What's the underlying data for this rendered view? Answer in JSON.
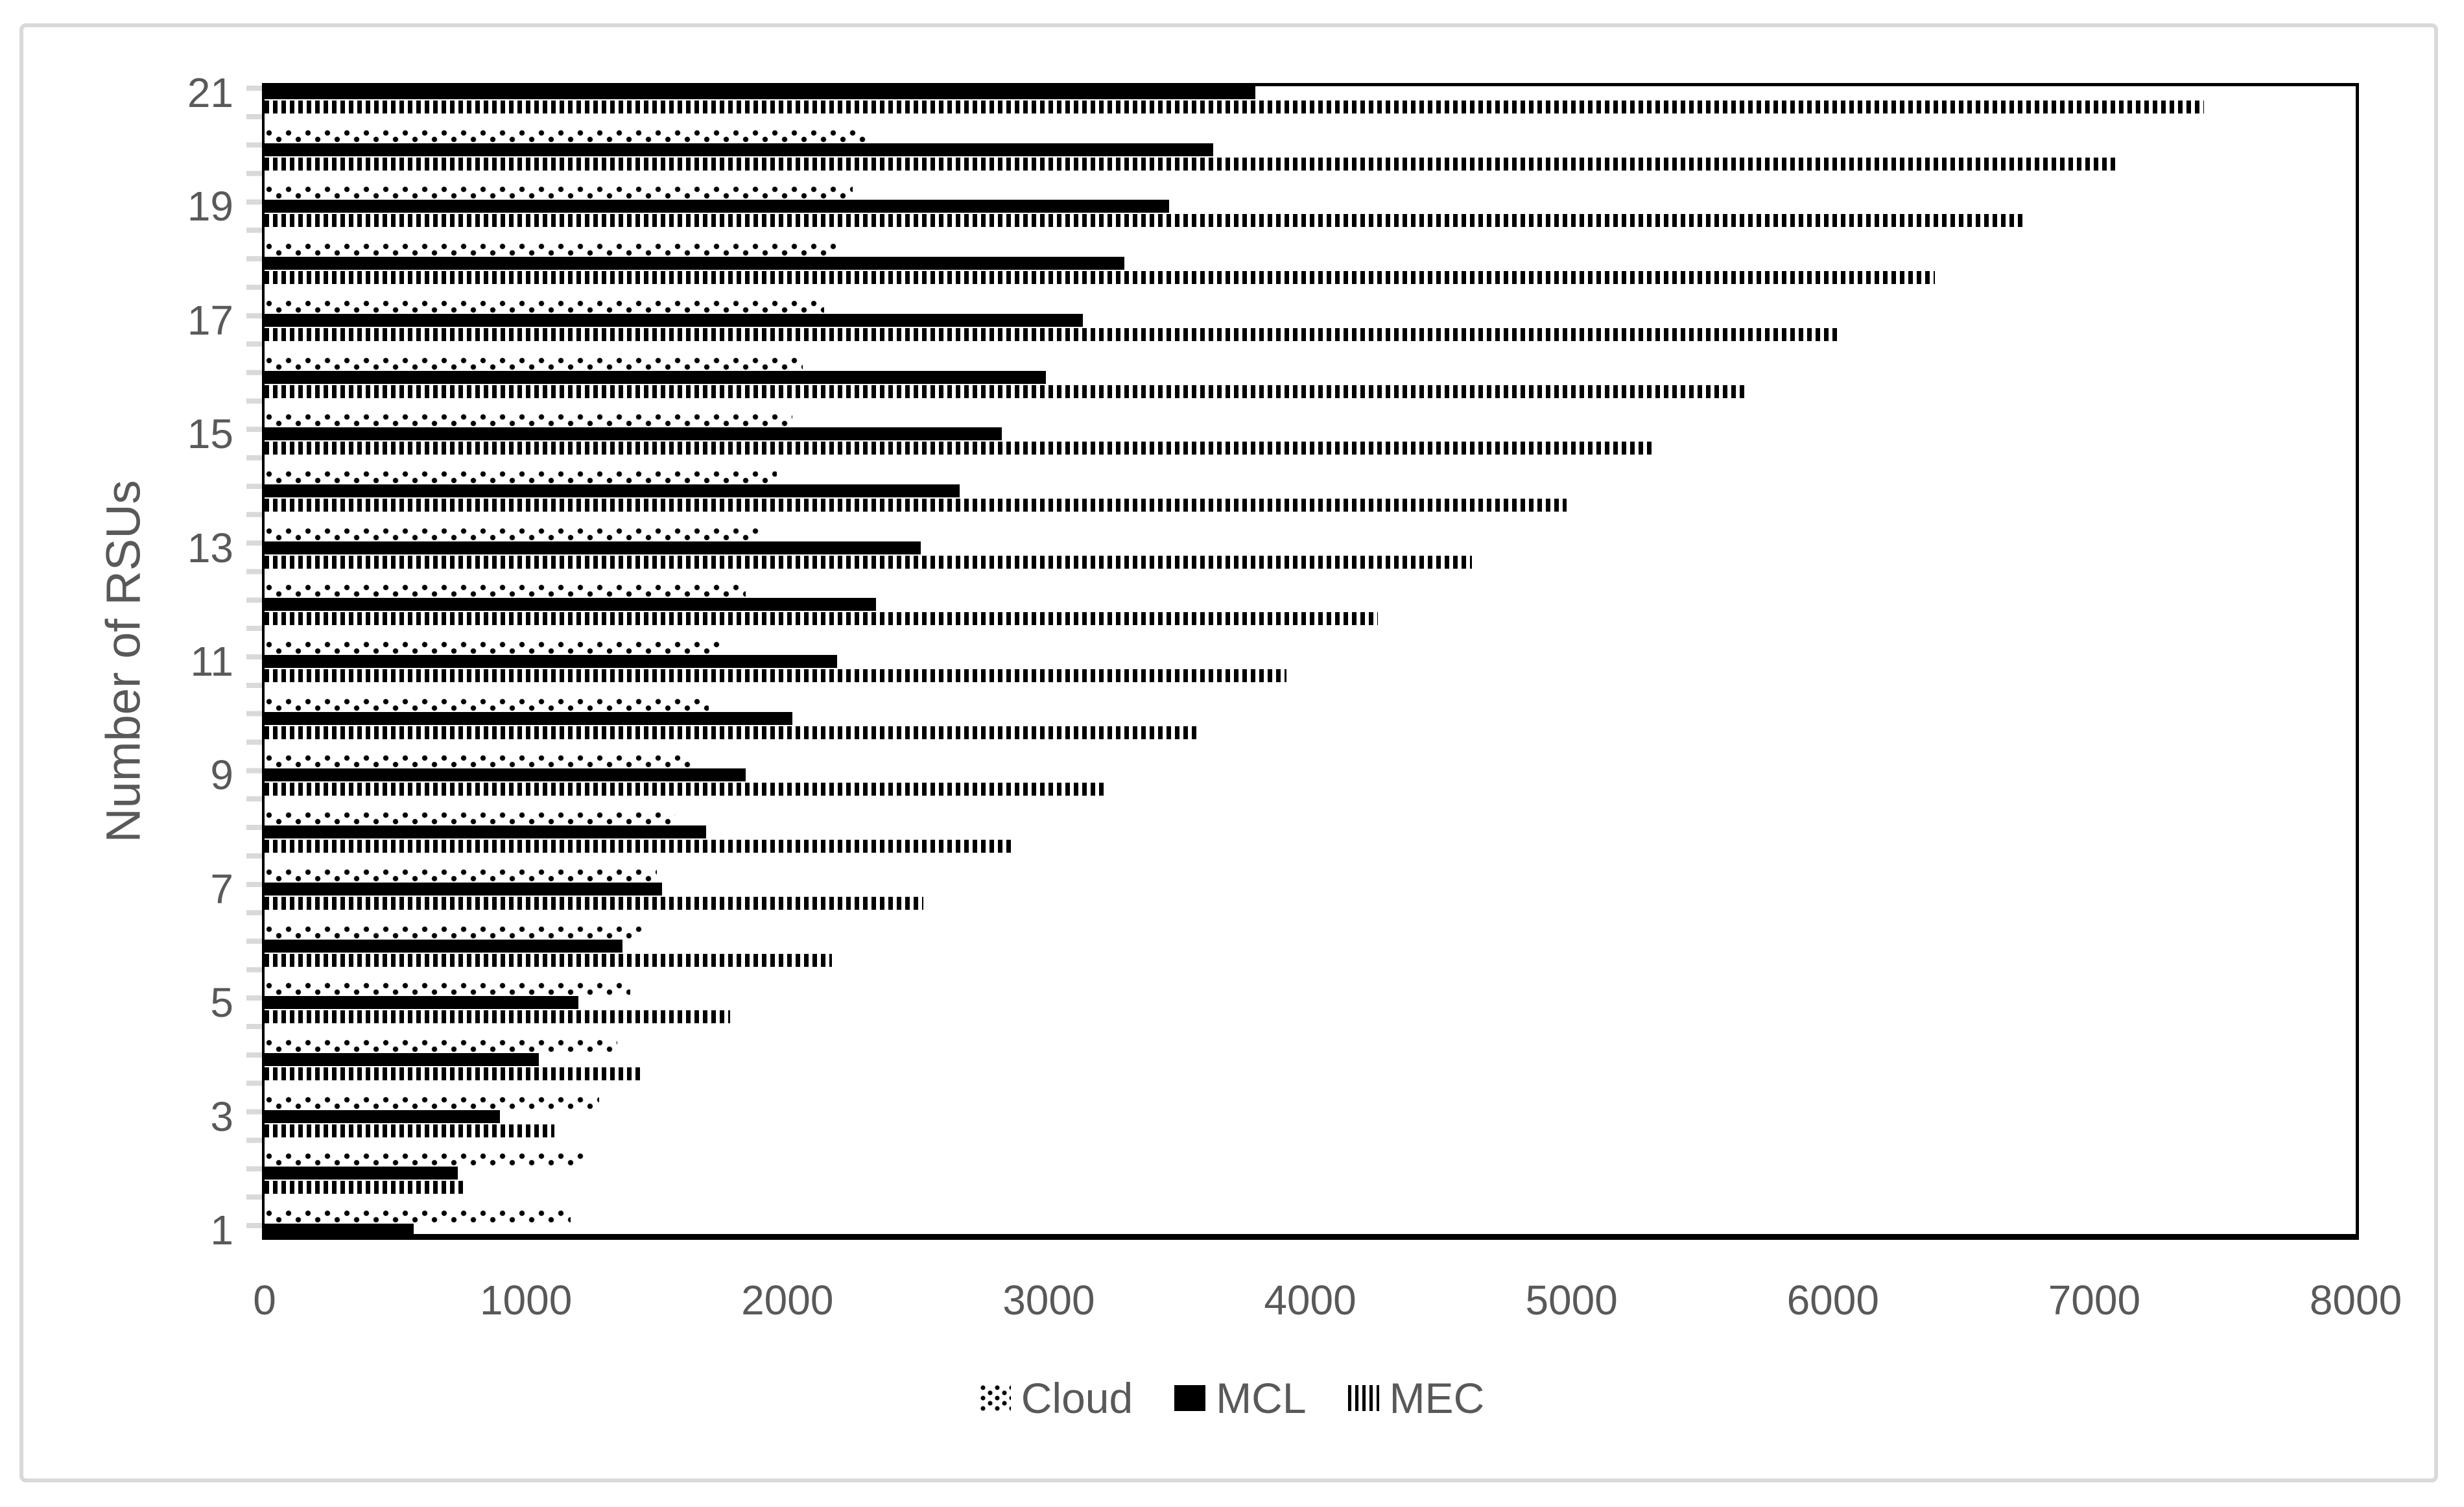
{
  "chart_data": {
    "type": "bar",
    "orientation": "horizontal",
    "title": "",
    "xlabel": "",
    "ylabel": "Number of RSUs",
    "xlim": [
      0,
      8000
    ],
    "x_ticks": [
      "0",
      "1000",
      "2000",
      "3000",
      "4000",
      "5000",
      "6000",
      "7000",
      "8000"
    ],
    "categories": [
      1,
      2,
      3,
      4,
      5,
      6,
      7,
      8,
      9,
      10,
      11,
      12,
      13,
      14,
      15,
      16,
      17,
      18,
      19,
      20,
      21
    ],
    "y_axis_labeled_ticks": [
      1,
      3,
      5,
      7,
      9,
      11,
      13,
      15,
      17,
      19,
      21
    ],
    "grid": false,
    "legend_position": "bottom",
    "null_means": "bar clipped outside plot area (not visible in image)",
    "series": [
      {
        "name": "Cloud",
        "pattern": "dots",
        "values": [
          1170,
          1220,
          1280,
          1350,
          1400,
          1450,
          1500,
          1570,
          1640,
          1700,
          1750,
          1840,
          1890,
          1960,
          2020,
          2060,
          2140,
          2200,
          2250,
          2310,
          null
        ]
      },
      {
        "name": "MCL",
        "pattern": "solid",
        "values": [
          570,
          740,
          900,
          1050,
          1200,
          1370,
          1520,
          1690,
          1840,
          2020,
          2190,
          2340,
          2510,
          2660,
          2820,
          2990,
          3130,
          3290,
          3460,
          3630,
          3790
        ]
      },
      {
        "name": "MEC",
        "pattern": "vertical-stripes",
        "values": [
          null,
          760,
          1110,
          1440,
          1780,
          2170,
          2520,
          2870,
          3210,
          3570,
          3910,
          4260,
          4620,
          4980,
          5320,
          5670,
          6030,
          6390,
          6730,
          7080,
          7420
        ]
      }
    ]
  },
  "colors": {
    "bars": "#000000",
    "text": "#595959",
    "plot_border": "#000000",
    "minor_ticks": "#d9d9d9",
    "figure_border": "#d9d9d9",
    "background": "#ffffff"
  }
}
